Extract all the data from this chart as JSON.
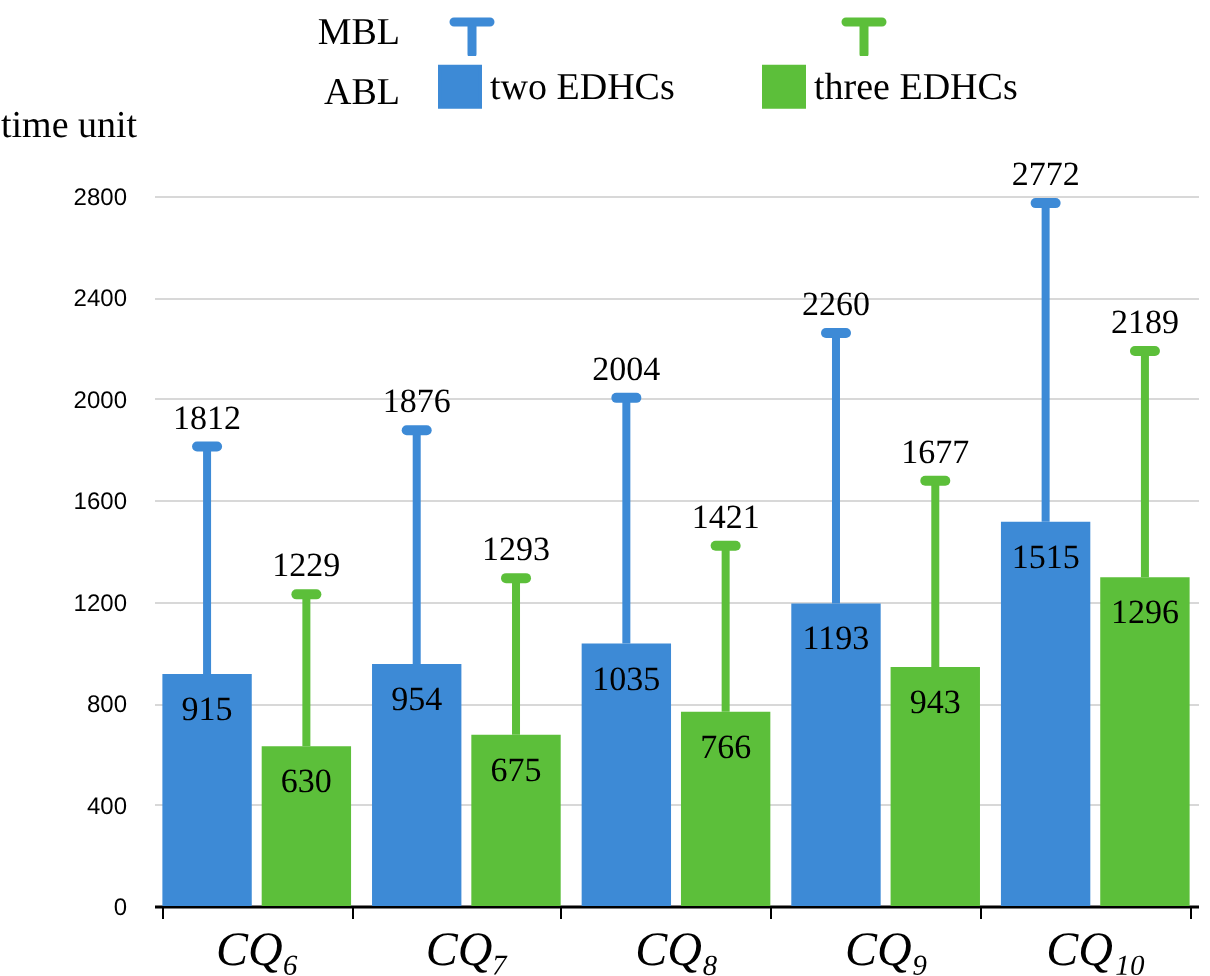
{
  "chart_data": {
    "type": "bar",
    "ylabel": "time unit",
    "categories": [
      "CQ₆",
      "CQ₇",
      "CQ₈",
      "CQ₉",
      "CQ₁₀"
    ],
    "series": [
      {
        "name": "two EDHCs",
        "color": "#3d8ad6",
        "values": [
          915,
          954,
          1035,
          1193,
          1515
        ],
        "errors": [
          [
            915,
            1812
          ],
          [
            954,
            1876
          ],
          [
            1035,
            2004
          ],
          [
            1193,
            2260
          ],
          [
            1515,
            2772
          ]
        ]
      },
      {
        "name": "three EDHCs",
        "color": "#5cbf3a",
        "values": [
          630,
          675,
          766,
          943,
          1296
        ],
        "errors": [
          [
            630,
            1229
          ],
          [
            675,
            1293
          ],
          [
            766,
            1421
          ],
          [
            943,
            1677
          ],
          [
            1296,
            2189
          ]
        ]
      }
    ],
    "ylim": [
      0,
      2800
    ],
    "yticks": [
      0,
      400,
      800,
      1200,
      1600,
      2000,
      2400,
      2800
    ],
    "grid": "y",
    "legend": "top",
    "data_labels": true,
    "annotations": [
      "MBL",
      "ABL",
      "1812",
      "1876",
      "2004",
      "2260",
      "2772",
      "1229",
      "1293",
      "1421",
      "1677",
      "2189"
    ]
  }
}
